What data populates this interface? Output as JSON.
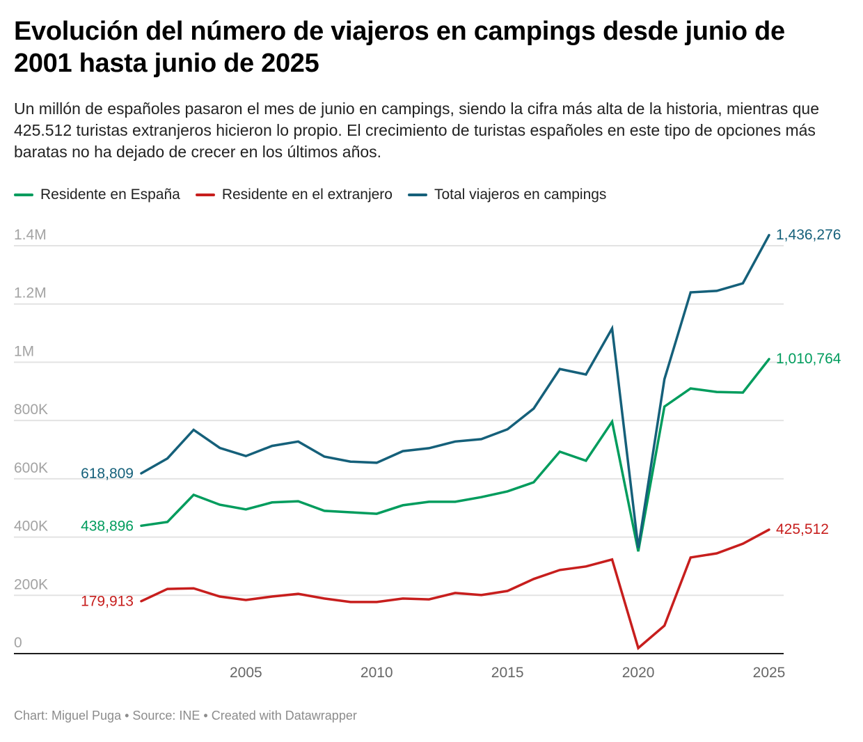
{
  "header": {
    "title": "Evolución del número de viajeros en campings desde junio de 2001 hasta junio de 2025",
    "subtitle": "Un millón de españoles pasaron el mes de junio en campings, siendo la cifra más alta de la historia, mientras que 425.512 turistas extranjeros hicieron lo propio. El crecimiento de turistas españoles en este tipo de opciones más baratas no ha dejado de crecer en los últimos años."
  },
  "footer": {
    "text": "Chart: Miguel Puga • Source: INE • Created with Datawrapper"
  },
  "chart_data": {
    "type": "line",
    "title": "Evolución del número de viajeros en campings desde junio de 2001 hasta junio de 2025",
    "xlabel": "",
    "ylabel": "",
    "x": [
      2001,
      2002,
      2003,
      2004,
      2005,
      2006,
      2007,
      2008,
      2009,
      2010,
      2011,
      2012,
      2013,
      2014,
      2015,
      2016,
      2017,
      2018,
      2019,
      2020,
      2021,
      2022,
      2023,
      2024,
      2025
    ],
    "xlim": [
      2001,
      2025
    ],
    "ylim": [
      0,
      1400000
    ],
    "grid": true,
    "legend_position": "top-left",
    "y_ticks": [
      {
        "value": 0,
        "label": "0"
      },
      {
        "value": 200000,
        "label": "200K"
      },
      {
        "value": 400000,
        "label": "400K"
      },
      {
        "value": 600000,
        "label": "600K"
      },
      {
        "value": 800000,
        "label": "800K"
      },
      {
        "value": 1000000,
        "label": "1M"
      },
      {
        "value": 1200000,
        "label": "1.2M"
      },
      {
        "value": 1400000,
        "label": "1.4M"
      }
    ],
    "x_ticks": [
      {
        "value": 2005,
        "label": "2005"
      },
      {
        "value": 2010,
        "label": "2010"
      },
      {
        "value": 2015,
        "label": "2015"
      },
      {
        "value": 2020,
        "label": "2020"
      },
      {
        "value": 2025,
        "label": "2025"
      }
    ],
    "series": [
      {
        "name": "Residente en España",
        "color": "#009c5d",
        "start_label": "438,896",
        "end_label": "1,010,764",
        "values": [
          438896,
          452000,
          545000,
          511000,
          495000,
          519000,
          523000,
          490000,
          485000,
          480000,
          509000,
          521000,
          521000,
          537000,
          557000,
          588000,
          693000,
          662000,
          796000,
          351000,
          848000,
          910000,
          898000,
          896000,
          1010764
        ]
      },
      {
        "name": "Residente en el extranjero",
        "color": "#c71e1d",
        "start_label": "179,913",
        "end_label": "425,512",
        "values": [
          179913,
          222000,
          224000,
          196000,
          184000,
          196000,
          205000,
          189000,
          177000,
          177000,
          189000,
          186000,
          208000,
          201000,
          215000,
          256000,
          287000,
          299000,
          323000,
          19000,
          96000,
          330000,
          344000,
          377000,
          425512
        ]
      },
      {
        "name": "Total viajeros en campings",
        "color": "#15607a",
        "start_label": "618,809",
        "end_label": "1,436,276",
        "values": [
          618809,
          670000,
          768000,
          706000,
          678000,
          713000,
          728000,
          676000,
          659000,
          655000,
          695000,
          705000,
          728000,
          736000,
          770000,
          841000,
          977000,
          958000,
          1116000,
          363000,
          942000,
          1240000,
          1245000,
          1271000,
          1436276
        ]
      }
    ]
  }
}
